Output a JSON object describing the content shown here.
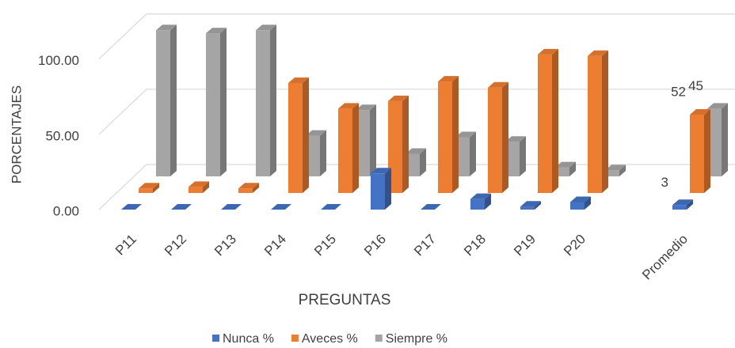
{
  "chart_data": {
    "type": "bar3d",
    "x_label": "PREGUNTAS",
    "y_label": "PORCENTAJES",
    "categories": [
      "P11",
      "P12",
      "P13",
      "P14",
      "P15",
      "P16",
      "P17",
      "P18",
      "P19",
      "P20",
      "Promedio"
    ],
    "series": [
      {
        "name": "Nunca %",
        "color": "#4472c4",
        "values": [
          0,
          0,
          0,
          0,
          0,
          24,
          0,
          7,
          2,
          5,
          3
        ],
        "value_labels": [
          null,
          null,
          null,
          null,
          null,
          null,
          null,
          null,
          null,
          null,
          "3"
        ]
      },
      {
        "name": "Aveces %",
        "color": "#ed7d31",
        "values": [
          3,
          4,
          3,
          73,
          56,
          61,
          74,
          70,
          92,
          91,
          52
        ],
        "value_labels": [
          null,
          null,
          null,
          null,
          null,
          null,
          null,
          null,
          null,
          null,
          "52"
        ]
      },
      {
        "name": "Siempre %",
        "color": "#a5a5a5",
        "values": [
          97,
          95,
          97,
          27,
          44,
          15,
          26,
          23,
          6,
          4,
          45
        ],
        "value_labels": [
          null,
          null,
          null,
          null,
          null,
          null,
          null,
          null,
          null,
          null,
          "45"
        ]
      }
    ],
    "ylim": [
      0,
      125
    ],
    "yticks": [
      {
        "value": 0,
        "label": "0.00"
      },
      {
        "value": 50,
        "label": "50.00"
      },
      {
        "value": 100,
        "label": "100.00"
      }
    ],
    "grid": true,
    "legend": "bottom"
  }
}
